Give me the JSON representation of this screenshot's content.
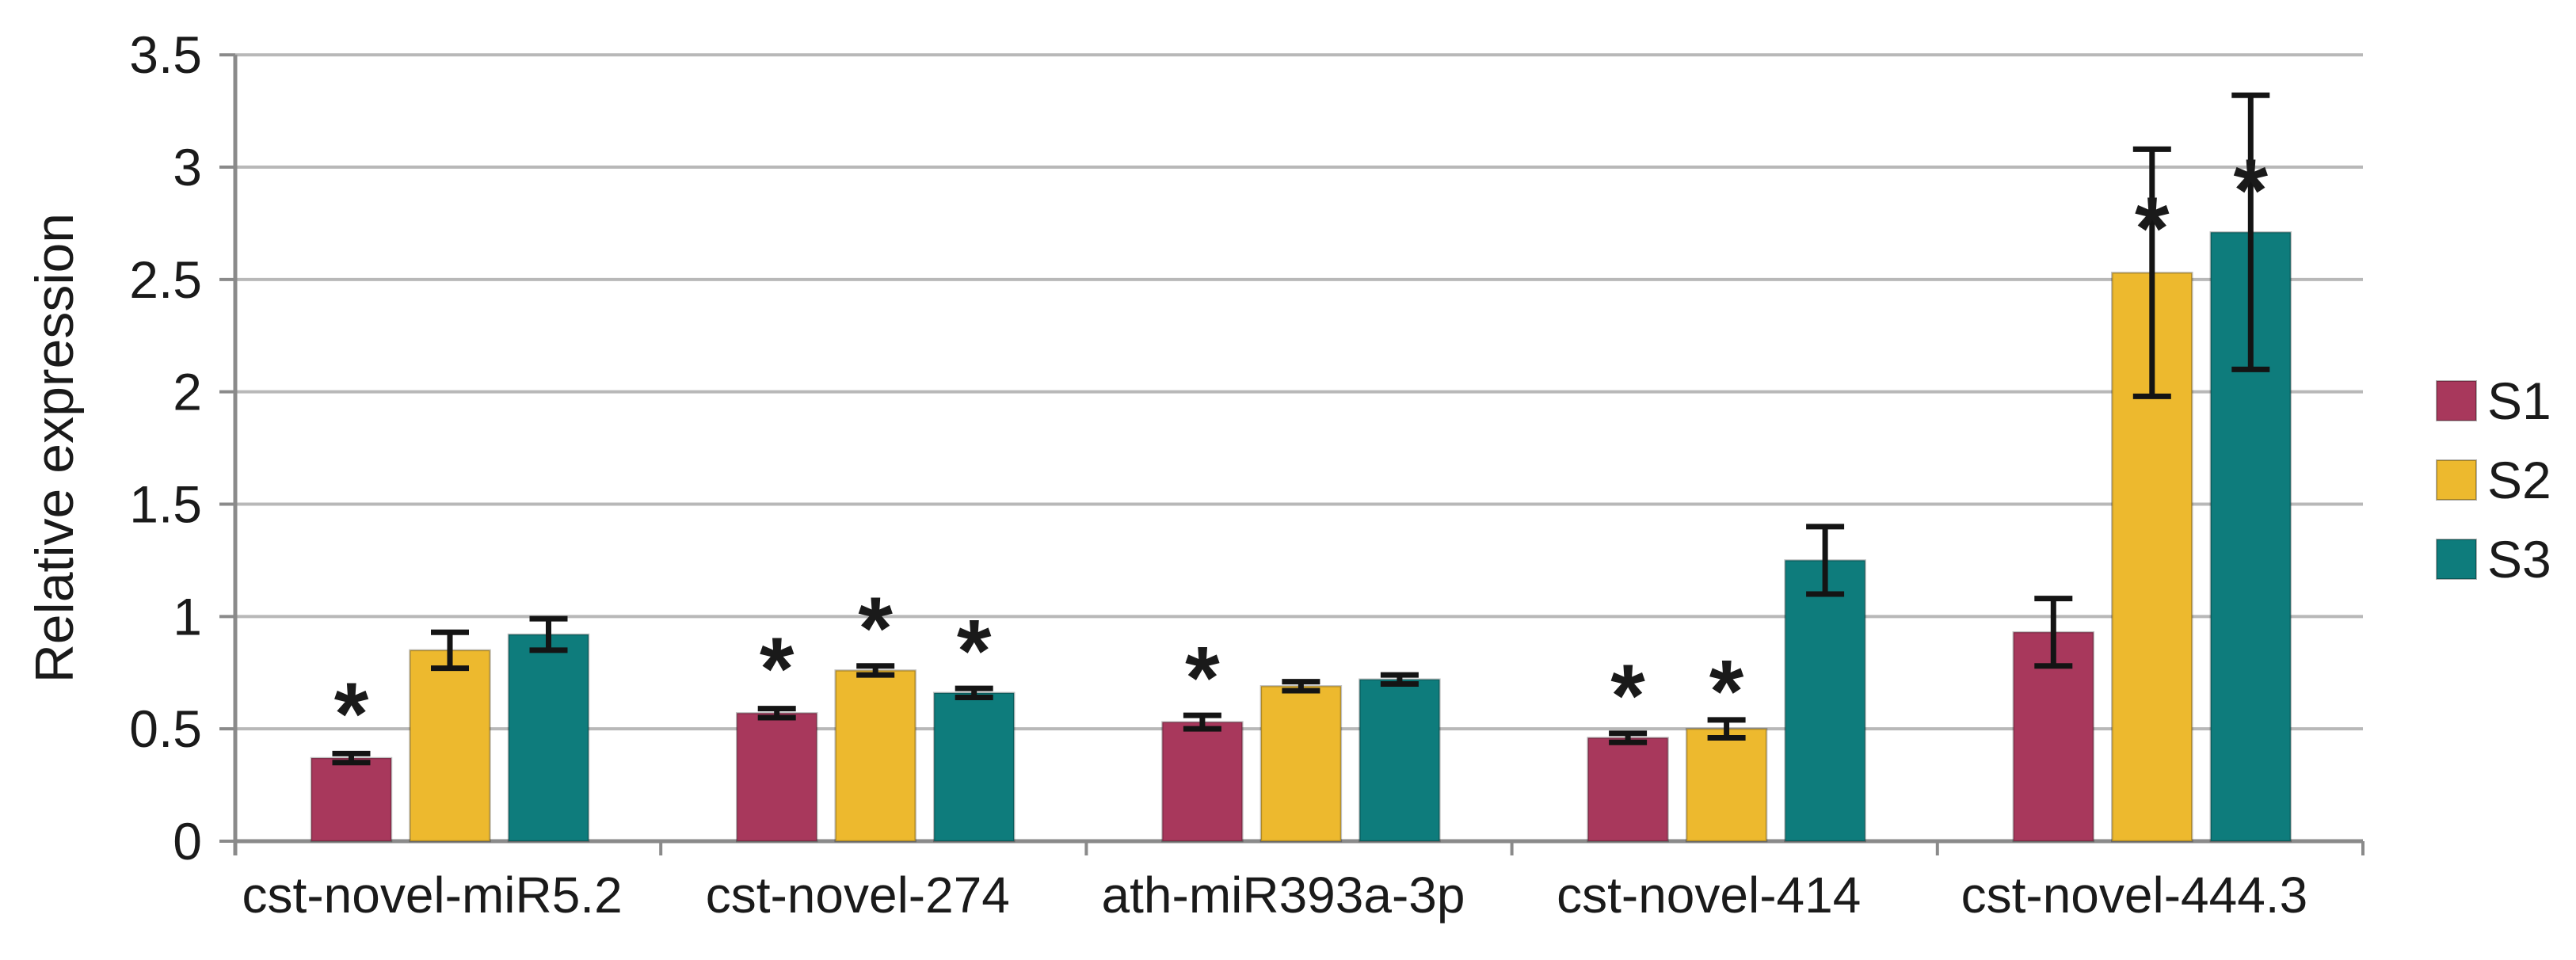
{
  "figure": {
    "background": "#ffffff",
    "text_color": "#1a1a1a",
    "grid_color": "#b8b8b8",
    "axis_color": "#8a8a8a",
    "error_bar_color": "#141414",
    "significance_marker": "*"
  },
  "chart_data": {
    "type": "bar",
    "title": "",
    "xlabel": "",
    "ylabel": "Relative expression",
    "ylim": [
      0,
      3.5
    ],
    "ytick_step": 0.5,
    "ytick_labels": [
      "0",
      "0.5",
      "1",
      "1.5",
      "2",
      "2.5",
      "3",
      "3.5"
    ],
    "grid": true,
    "legend_position": "right",
    "categories": [
      "cst-novel-miR5.2",
      "cst-novel-274",
      "ath-miR393a-3p",
      "cst-novel-414",
      "cst-novel-444.3"
    ],
    "series": [
      {
        "name": "S1",
        "color": "#a8385c",
        "values": [
          0.37,
          0.57,
          0.53,
          0.46,
          0.93
        ],
        "errors": [
          0.02,
          0.02,
          0.03,
          0.02,
          0.15
        ],
        "sig_marks": [
          0.64,
          0.84,
          0.8,
          0.72,
          null
        ]
      },
      {
        "name": "S2",
        "color": "#edb92e",
        "values": [
          0.85,
          0.76,
          0.69,
          0.5,
          2.53
        ],
        "errors": [
          0.08,
          0.02,
          0.02,
          0.04,
          0.55
        ],
        "sig_marks": [
          null,
          1.02,
          null,
          0.74,
          2.8
        ]
      },
      {
        "name": "S3",
        "color": "#0e7c7c",
        "values": [
          0.92,
          0.66,
          0.72,
          1.25,
          2.71
        ],
        "errors": [
          0.07,
          0.02,
          0.02,
          0.15,
          0.61
        ],
        "sig_marks": [
          null,
          0.92,
          null,
          null,
          2.97
        ]
      }
    ]
  }
}
